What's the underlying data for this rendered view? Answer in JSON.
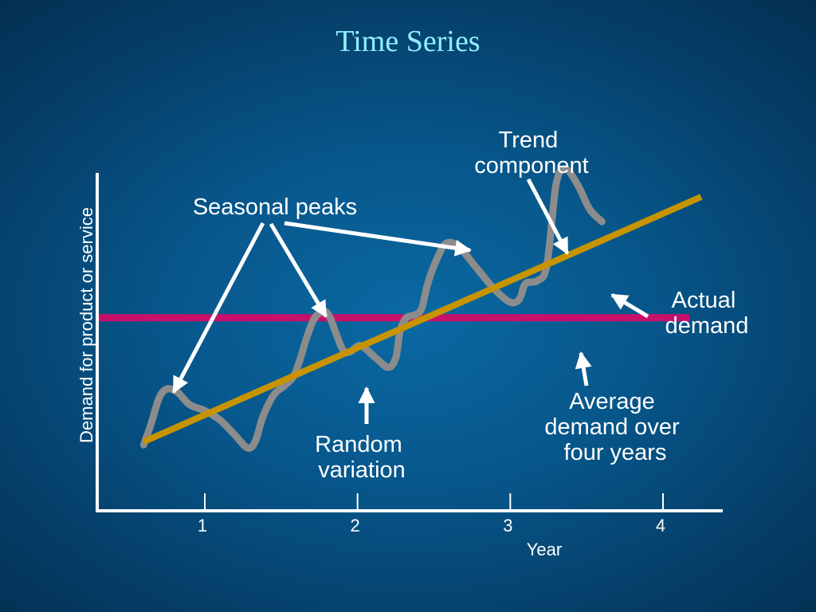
{
  "chart_data": {
    "type": "line",
    "title": "Time Series",
    "xlabel": "Year",
    "ylabel": "Demand for product or service",
    "x_ticks": [
      1,
      2,
      3,
      4
    ],
    "xlim": [
      0.35,
      4.4
    ],
    "ylim": [
      0,
      1
    ],
    "y_ticks_shown": false,
    "grid": false,
    "series": [
      {
        "name": "Actual demand",
        "color": "#8c8c8c",
        "points": [
          [
            0.6,
            0.11
          ],
          [
            0.65,
            0.18
          ],
          [
            0.7,
            0.26
          ],
          [
            0.75,
            0.29
          ],
          [
            0.82,
            0.28
          ],
          [
            0.9,
            0.24
          ],
          [
            1.0,
            0.22
          ],
          [
            1.1,
            0.19
          ],
          [
            1.2,
            0.14
          ],
          [
            1.28,
            0.1
          ],
          [
            1.33,
            0.12
          ],
          [
            1.38,
            0.2
          ],
          [
            1.45,
            0.27
          ],
          [
            1.52,
            0.3
          ],
          [
            1.58,
            0.33
          ],
          [
            1.62,
            0.38
          ],
          [
            1.67,
            0.46
          ],
          [
            1.72,
            0.52
          ],
          [
            1.78,
            0.54
          ],
          [
            1.82,
            0.52
          ],
          [
            1.9,
            0.42
          ],
          [
            1.95,
            0.41
          ],
          [
            2.02,
            0.43
          ],
          [
            2.12,
            0.39
          ],
          [
            2.2,
            0.36
          ],
          [
            2.25,
            0.39
          ],
          [
            2.28,
            0.48
          ],
          [
            2.32,
            0.52
          ],
          [
            2.38,
            0.53
          ],
          [
            2.42,
            0.55
          ],
          [
            2.46,
            0.63
          ],
          [
            2.52,
            0.71
          ],
          [
            2.58,
            0.76
          ],
          [
            2.66,
            0.75
          ],
          [
            2.78,
            0.68
          ],
          [
            2.9,
            0.61
          ],
          [
            3.0,
            0.57
          ],
          [
            3.06,
            0.58
          ],
          [
            3.1,
            0.63
          ],
          [
            3.18,
            0.64
          ],
          [
            3.24,
            0.69
          ],
          [
            3.3,
            0.95
          ],
          [
            3.36,
            1.0
          ],
          [
            3.44,
            0.95
          ],
          [
            3.52,
            0.87
          ],
          [
            3.6,
            0.83
          ]
        ]
      },
      {
        "name": "Trend component",
        "color": "#c79400",
        "points": [
          [
            0.6,
            0.12
          ],
          [
            4.25,
            0.91
          ]
        ]
      },
      {
        "name": "Average demand over four years",
        "color": "#c8106b",
        "points": [
          [
            0.6,
            0.52
          ],
          [
            4.25,
            0.52
          ]
        ]
      }
    ],
    "annotations": [
      {
        "text": [
          "Seasonal peaks"
        ]
      },
      {
        "text": [
          "Trend",
          "component"
        ]
      },
      {
        "text": [
          "Actual",
          "demand"
        ]
      },
      {
        "text": [
          "Average",
          "demand over",
          "four years"
        ]
      },
      {
        "text": [
          "Random",
          "variation"
        ]
      }
    ]
  }
}
